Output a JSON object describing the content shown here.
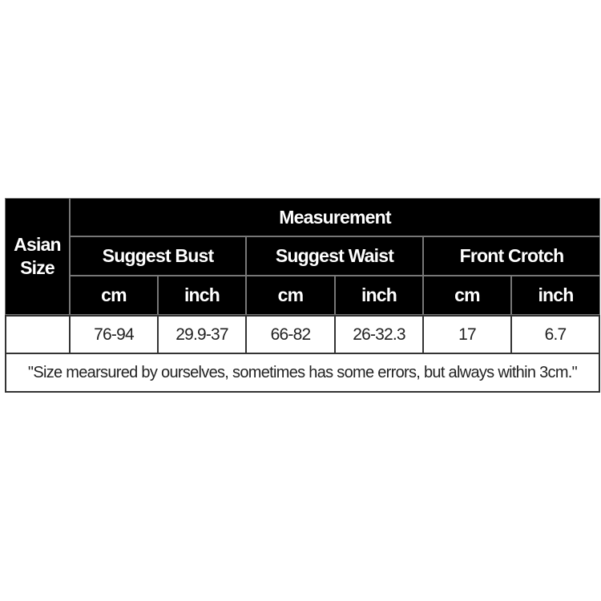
{
  "table": {
    "row_header": "Asian\nSize",
    "group_header": "Measurement",
    "measures": [
      "Suggest Bust",
      "Suggest Waist",
      "Front Crotch"
    ],
    "units": [
      "cm",
      "inch",
      "cm",
      "inch",
      "cm",
      "inch"
    ],
    "rows": [
      {
        "size": "",
        "values": [
          "76-94",
          "29.9-37",
          "66-82",
          "26-32.3",
          "17",
          "6.7"
        ]
      }
    ],
    "note": "\"Size mearsured by ourselves, sometimes has some errors, but always within 3cm.\""
  },
  "colors": {
    "header_bg": "#000000",
    "header_text": "#ffffff",
    "body_bg": "#ffffff"
  }
}
